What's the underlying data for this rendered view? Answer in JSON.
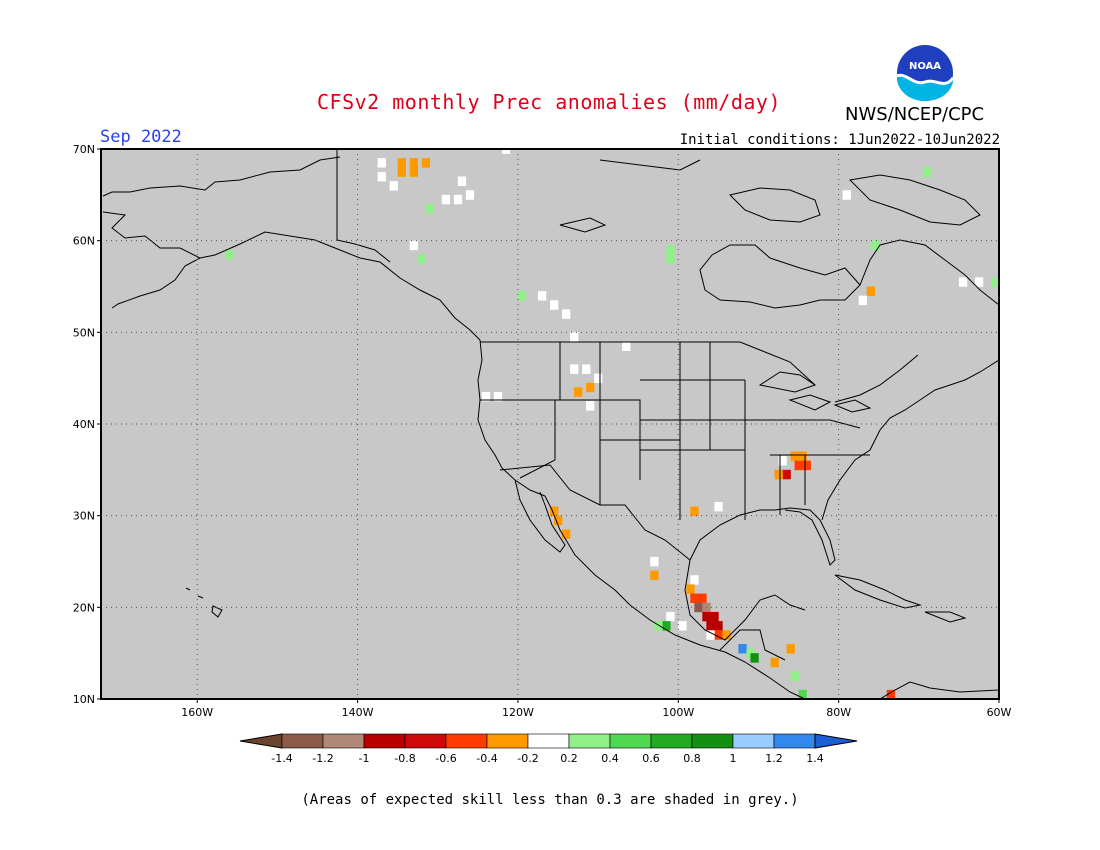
{
  "header": {
    "title": "CFSv2 monthly Prec anomalies (mm/day)",
    "period": "Sep 2022",
    "initial_conditions": "Initial conditions: 1Jun2022-10Jun2022",
    "organization": "NWS/NCEP/CPC",
    "logo_text": "NOAA"
  },
  "map": {
    "projection": "cylindrical",
    "lon_range": [
      -172,
      -60
    ],
    "lat_range": [
      10,
      70
    ],
    "background_color": "#c8c8c8",
    "lat_labels": [
      "70N",
      "60N",
      "50N",
      "40N",
      "30N",
      "20N",
      "10N"
    ],
    "lon_labels": [
      "160W",
      "140W",
      "120W",
      "100W",
      "80W",
      "60W"
    ],
    "grid": "dotted"
  },
  "colorbar": {
    "labels": [
      "-1.4",
      "-1.2",
      "-1",
      "-0.8",
      "-0.6",
      "-0.4",
      "-0.2",
      "0.2",
      "0.4",
      "0.6",
      "0.8",
      "1",
      "1.2",
      "1.4"
    ],
    "colors": [
      "#6b4430",
      "#8b5a4a",
      "#b08878",
      "#b80000",
      "#cc0a0a",
      "#ff3b00",
      "#ff9900",
      "#ffffff",
      "#90ef88",
      "#50d850",
      "#22aa22",
      "#138f13",
      "#99ccff",
      "#3388ee",
      "#1c5fd4"
    ]
  },
  "footnote": "(Areas of expected skill less than 0.3 are shaded in grey.)",
  "chart_data": {
    "type": "heatmap",
    "title": "CFSv2 monthly Prec anomalies (mm/day)",
    "period": "Sep 2022",
    "cells": [
      {
        "lon": -134.5,
        "lat": 68.5,
        "color": "#ff9900"
      },
      {
        "lon": -133,
        "lat": 68.5,
        "color": "#ff9900"
      },
      {
        "lon": -131.5,
        "lat": 68.5,
        "color": "#ff9900"
      },
      {
        "lon": -134.5,
        "lat": 67.5,
        "color": "#ff9900"
      },
      {
        "lon": -133,
        "lat": 67.5,
        "color": "#ff9900"
      },
      {
        "lon": -137,
        "lat": 68.5,
        "color": "#ffffff"
      },
      {
        "lon": -137,
        "lat": 67,
        "color": "#ffffff"
      },
      {
        "lon": -135.5,
        "lat": 66,
        "color": "#ffffff"
      },
      {
        "lon": -129,
        "lat": 64.5,
        "color": "#ffffff"
      },
      {
        "lon": -127.5,
        "lat": 64.5,
        "color": "#ffffff"
      },
      {
        "lon": -126,
        "lat": 65,
        "color": "#ffffff"
      },
      {
        "lon": -131,
        "lat": 63.5,
        "color": "#90ef88"
      },
      {
        "lon": -156,
        "lat": 58.5,
        "color": "#90ef88"
      },
      {
        "lon": -133,
        "lat": 59.5,
        "color": "#ffffff"
      },
      {
        "lon": -132,
        "lat": 58,
        "color": "#90ef88"
      },
      {
        "lon": -101,
        "lat": 59,
        "color": "#90ef88"
      },
      {
        "lon": -101,
        "lat": 58,
        "color": "#90ef88"
      },
      {
        "lon": -117,
        "lat": 54,
        "color": "#ffffff"
      },
      {
        "lon": -115.5,
        "lat": 53,
        "color": "#ffffff"
      },
      {
        "lon": -114,
        "lat": 52,
        "color": "#ffffff"
      },
      {
        "lon": -119.5,
        "lat": 54,
        "color": "#90ef88"
      },
      {
        "lon": -113,
        "lat": 46,
        "color": "#ffffff"
      },
      {
        "lon": -111.5,
        "lat": 46,
        "color": "#ffffff"
      },
      {
        "lon": -110,
        "lat": 45,
        "color": "#ffffff"
      },
      {
        "lon": -111,
        "lat": 44,
        "color": "#ff9900"
      },
      {
        "lon": -112.5,
        "lat": 43.5,
        "color": "#ff9900"
      },
      {
        "lon": -111,
        "lat": 42,
        "color": "#ffffff"
      },
      {
        "lon": -124,
        "lat": 43,
        "color": "#ffffff"
      },
      {
        "lon": -122.5,
        "lat": 43,
        "color": "#ffffff"
      },
      {
        "lon": -115.5,
        "lat": 30.5,
        "color": "#ff9900"
      },
      {
        "lon": -115,
        "lat": 29.5,
        "color": "#ff9900"
      },
      {
        "lon": -114,
        "lat": 28,
        "color": "#ff9900"
      },
      {
        "lon": -103,
        "lat": 23.5,
        "color": "#ff9900"
      },
      {
        "lon": -103,
        "lat": 25,
        "color": "#ffffff"
      },
      {
        "lon": -98,
        "lat": 23,
        "color": "#ffffff"
      },
      {
        "lon": -98.5,
        "lat": 22,
        "color": "#ff9900"
      },
      {
        "lon": -98,
        "lat": 21,
        "color": "#ff3b00"
      },
      {
        "lon": -97,
        "lat": 21,
        "color": "#ff3b00"
      },
      {
        "lon": -97.5,
        "lat": 20,
        "color": "#8b5a4a"
      },
      {
        "lon": -96.5,
        "lat": 20,
        "color": "#b08878"
      },
      {
        "lon": -96.5,
        "lat": 19,
        "color": "#b80000"
      },
      {
        "lon": -95.5,
        "lat": 19,
        "color": "#b80000"
      },
      {
        "lon": -96,
        "lat": 18,
        "color": "#b80000"
      },
      {
        "lon": -95,
        "lat": 18,
        "color": "#b80000"
      },
      {
        "lon": -95,
        "lat": 17,
        "color": "#ff3b00"
      },
      {
        "lon": -94,
        "lat": 17,
        "color": "#ff9900"
      },
      {
        "lon": -96,
        "lat": 17,
        "color": "#ffffff"
      },
      {
        "lon": -99.5,
        "lat": 18,
        "color": "#ffffff"
      },
      {
        "lon": -101,
        "lat": 19,
        "color": "#ffffff"
      },
      {
        "lon": -101.5,
        "lat": 18,
        "color": "#22aa22"
      },
      {
        "lon": -102.5,
        "lat": 18,
        "color": "#90ef88"
      },
      {
        "lon": -92,
        "lat": 15.5,
        "color": "#3388ee"
      },
      {
        "lon": -91,
        "lat": 15,
        "color": "#90ef88"
      },
      {
        "lon": -90.5,
        "lat": 14.5,
        "color": "#138f13"
      },
      {
        "lon": -88,
        "lat": 14,
        "color": "#ff9900"
      },
      {
        "lon": -86,
        "lat": 15.5,
        "color": "#ff9900"
      },
      {
        "lon": -85.5,
        "lat": 12.5,
        "color": "#90ef88"
      },
      {
        "lon": -84.5,
        "lat": 10.5,
        "color": "#50d850"
      },
      {
        "lon": -73.5,
        "lat": 10.5,
        "color": "#ff3b00"
      },
      {
        "lon": -85.5,
        "lat": 36.5,
        "color": "#ff9900"
      },
      {
        "lon": -84.5,
        "lat": 36.5,
        "color": "#ff9900"
      },
      {
        "lon": -84,
        "lat": 35.5,
        "color": "#ff3b00"
      },
      {
        "lon": -85,
        "lat": 35.5,
        "color": "#ff3b00"
      },
      {
        "lon": -86.5,
        "lat": 34.5,
        "color": "#cc0a0a"
      },
      {
        "lon": -87.5,
        "lat": 34.5,
        "color": "#ff9900"
      },
      {
        "lon": -87,
        "lat": 36,
        "color": "#ffffff"
      },
      {
        "lon": -95,
        "lat": 31,
        "color": "#ffffff"
      },
      {
        "lon": -98,
        "lat": 30.5,
        "color": "#ff9900"
      },
      {
        "lon": -76,
        "lat": 54.5,
        "color": "#ff9900"
      },
      {
        "lon": -77,
        "lat": 53.5,
        "color": "#ffffff"
      },
      {
        "lon": -75.5,
        "lat": 59.5,
        "color": "#90ef88"
      },
      {
        "lon": -64.5,
        "lat": 55.5,
        "color": "#ffffff"
      },
      {
        "lon": -62.5,
        "lat": 55.5,
        "color": "#ffffff"
      },
      {
        "lon": -60.5,
        "lat": 55.5,
        "color": "#90ef88"
      },
      {
        "lon": -69,
        "lat": 67.5,
        "color": "#90ef88"
      },
      {
        "lon": -79,
        "lat": 65,
        "color": "#ffffff"
      },
      {
        "lon": -127,
        "lat": 66.5,
        "color": "#ffffff"
      },
      {
        "lon": -121.5,
        "lat": 70,
        "color": "#ffffff"
      },
      {
        "lon": -113,
        "lat": 49.5,
        "color": "#ffffff"
      },
      {
        "lon": -106.5,
        "lat": 48.5,
        "color": "#ffffff"
      }
    ]
  }
}
